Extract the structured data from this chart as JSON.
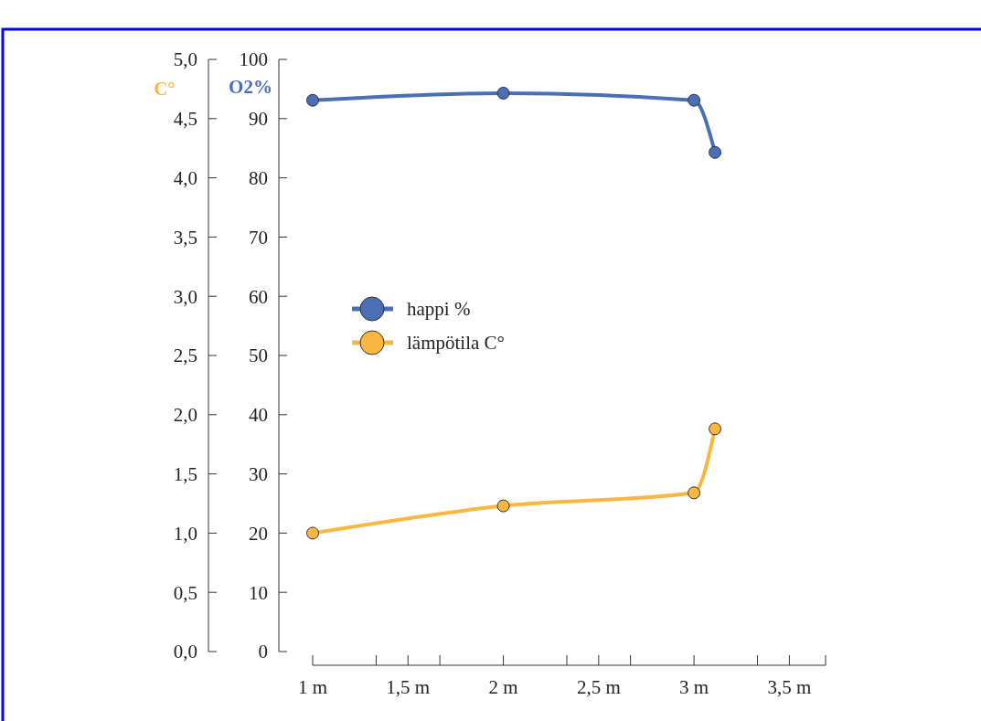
{
  "chart_data": {
    "type": "line",
    "ylabel": "O2%",
    "y2label": "C°",
    "x": [
      1,
      2,
      3,
      3.11
    ],
    "xlim": [
      1,
      3.69
    ],
    "xticks": [
      {
        "value": 1,
        "label": "1 m"
      },
      {
        "value": 1.333,
        "label": null
      },
      {
        "value": 1.5,
        "label": "1,5 m"
      },
      {
        "value": 1.667,
        "label": null
      },
      {
        "value": 2,
        "label": "2 m"
      },
      {
        "value": 2.333,
        "label": null
      },
      {
        "value": 2.5,
        "label": "2,5 m"
      },
      {
        "value": 2.667,
        "label": null
      },
      {
        "value": 3,
        "label": "3 m"
      },
      {
        "value": 3.333,
        "label": null
      },
      {
        "value": 3.5,
        "label": "3,5 m"
      },
      {
        "value": 3.69,
        "label": null
      }
    ],
    "ylim": [
      0,
      100
    ],
    "yticks": [
      0,
      10,
      20,
      30,
      40,
      50,
      60,
      70,
      80,
      90,
      100
    ],
    "y2lim": [
      0,
      5
    ],
    "y2ticks": [
      {
        "value": 0,
        "label": "0,0"
      },
      {
        "value": 0.5,
        "label": "0,5"
      },
      {
        "value": 1,
        "label": "1,0"
      },
      {
        "value": 1.5,
        "label": "1,5"
      },
      {
        "value": 2,
        "label": "2,0"
      },
      {
        "value": 2.5,
        "label": "2,5"
      },
      {
        "value": 3,
        "label": "3,0"
      },
      {
        "value": 3.5,
        "label": "3,5"
      },
      {
        "value": 4,
        "label": "4,0"
      },
      {
        "value": 4.5,
        "label": "4,5"
      },
      {
        "value": 5,
        "label": "5,0"
      }
    ],
    "series": [
      {
        "name": "happi %",
        "color": "#4a6fb5",
        "values": [
          93.1,
          94.3,
          93.1,
          84.3
        ]
      },
      {
        "name": "lämpötila C°",
        "color": "#f9b641",
        "axis": "y2",
        "values": [
          1.0,
          1.23,
          1.34,
          1.88
        ]
      }
    ],
    "marker": "circle",
    "line_style": "solid",
    "legend": "left",
    "grid": false
  }
}
